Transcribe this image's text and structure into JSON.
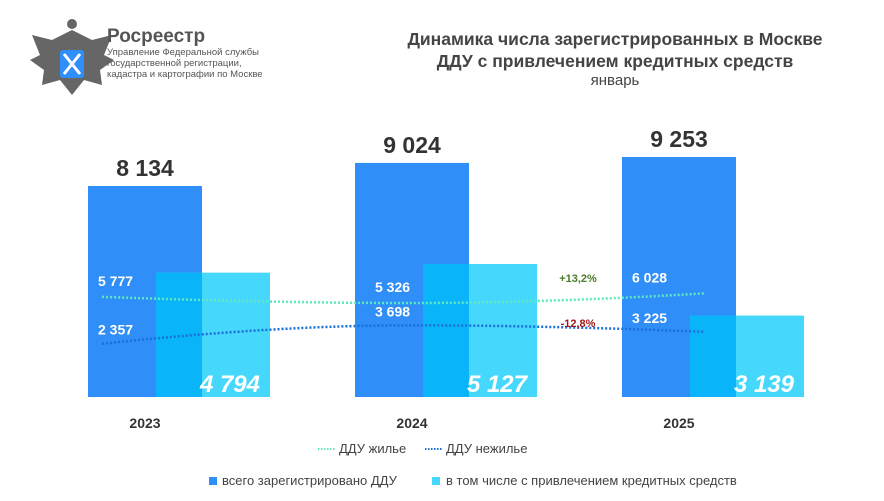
{
  "logo": {
    "name": "Росреестр",
    "lines": [
      "Управление Федеральной службы",
      "государственной регистрации,",
      "кадастра и картографии по Москве"
    ]
  },
  "colors": {
    "total": "#2f8ef8",
    "credit": "#46d8fc",
    "overlap": "#0ab4f8",
    "residential": "#5ee8c0",
    "nonresidential": "#1a6fd8",
    "up": "#4a7a2a",
    "down": "#a01818"
  },
  "chart_data": {
    "type": "bar",
    "title": "Динамика числа зарегистрированных в Москве ДДУ с привлечением кредитных средств",
    "title_lines": [
      "Динамика числа зарегистрированных в Москве",
      "ДДУ с привлечением кредитных средств"
    ],
    "subtitle": "январь",
    "categories": [
      "2023",
      "2024",
      "2025"
    ],
    "series": [
      {
        "name": "всего зарегистрировано ДДУ",
        "type": "bar",
        "values": [
          8134,
          9024,
          9253
        ],
        "labels": [
          "8 134",
          "9 024",
          "9 253"
        ]
      },
      {
        "name": "в том числе с привлечением кредитных средств",
        "type": "bar",
        "values": [
          4794,
          5127,
          3139
        ],
        "labels": [
          "4 794",
          "5 127",
          "3 139"
        ]
      },
      {
        "name": "ДДУ жилье",
        "type": "line",
        "values": [
          5777,
          5326,
          6028
        ],
        "labels": [
          "5 777",
          "5 326",
          "6 028"
        ]
      },
      {
        "name": "ДДУ нежилье",
        "type": "line",
        "values": [
          2357,
          3698,
          3225
        ],
        "labels": [
          "2 357",
          "3 698",
          "3 225"
        ]
      }
    ],
    "annotations": [
      "+13,2%",
      "-12,8%"
    ],
    "legend": "bottom"
  }
}
